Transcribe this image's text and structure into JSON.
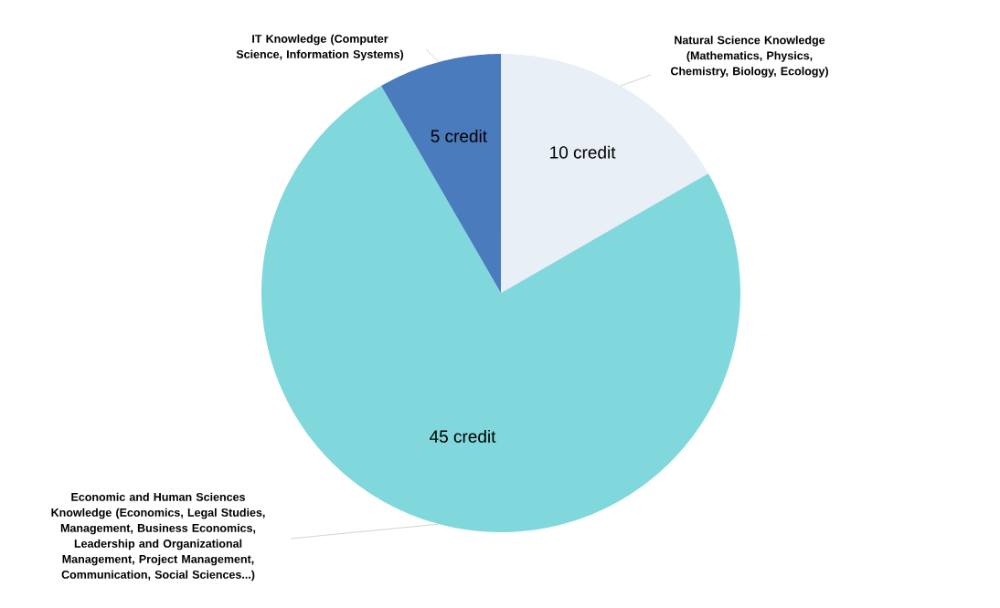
{
  "chart_data": {
    "type": "pie",
    "categories": [
      "Natural Science Knowledge (Mathematics, Physics, Chemistry, Biology, Ecology)",
      "Economic and Human Sciences Knowledge (Economics, Legal Studies, Management, Business Economics, Leadership and Organizational Management, Project Management, Communication, Social Sciences...)",
      "IT Knowledge (Computer Science, Information Systems)"
    ],
    "values": [
      10,
      45,
      5
    ],
    "value_labels": [
      "10 credit",
      "45 credit",
      "5 credit"
    ],
    "colors": [
      "#e9eff6",
      "#80d8dc",
      "#4a7bbd"
    ]
  }
}
